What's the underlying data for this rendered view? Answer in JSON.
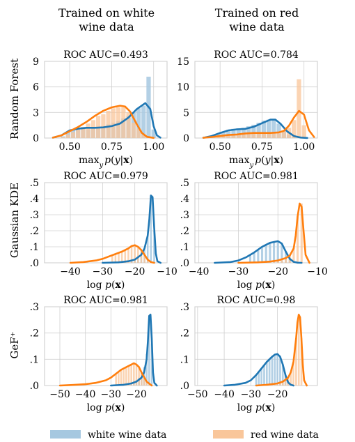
{
  "column_titles": [
    [
      "Trained on white",
      "wine data"
    ],
    [
      "Trained on red",
      "wine data"
    ]
  ],
  "row_titles": [
    "Random Forest",
    "Gaussian KDE",
    "GeF⁺"
  ],
  "legend": [
    {
      "label": "white wine data",
      "color": "#a6c8e0"
    },
    {
      "label": "red wine data",
      "color": "#f9c69a"
    }
  ],
  "colors": {
    "white": "#1f77b4",
    "red": "#ff7f0e",
    "white_bar": "#a6c8e0",
    "red_bar": "#f9c69a",
    "grid": "#d0d0d0"
  },
  "chart_data": [
    {
      "type": "area",
      "title": "ROC AUC=0.493",
      "xlabel": "max_y p(y|x)",
      "xlim": [
        0.35,
        1.08
      ],
      "ylim": [
        0,
        9
      ],
      "xticks": [
        0.5,
        0.75,
        1.0
      ],
      "xtick_labels": [
        "0.50",
        "0.75",
        "1.00"
      ],
      "yticks": [
        0,
        3,
        6,
        9
      ],
      "ytick_labels": [
        "0",
        "3",
        "6",
        "9"
      ],
      "series": [
        {
          "name": "white wine data",
          "x": [
            0.4,
            0.45,
            0.5,
            0.55,
            0.6,
            0.65,
            0.7,
            0.75,
            0.8,
            0.85,
            0.9,
            0.95,
            0.98,
            1.0,
            1.02,
            1.04
          ],
          "y": [
            0.05,
            0.3,
            0.9,
            1.1,
            1.2,
            1.2,
            1.25,
            1.4,
            1.7,
            2.4,
            3.4,
            4.1,
            3.4,
            1.4,
            0.3,
            0.05
          ]
        },
        {
          "name": "red wine data",
          "x": [
            0.4,
            0.45,
            0.5,
            0.55,
            0.6,
            0.65,
            0.7,
            0.75,
            0.8,
            0.83,
            0.86,
            0.9,
            0.93,
            0.96,
            1.0
          ],
          "y": [
            0.05,
            0.3,
            0.8,
            1.3,
            1.9,
            2.6,
            3.2,
            3.6,
            3.8,
            3.7,
            3.1,
            1.6,
            0.6,
            0.15,
            0.02
          ]
        }
      ],
      "bars": {
        "width": 0.026,
        "bins": [
          [
            0.46,
            0.2,
            0.1
          ],
          [
            0.49,
            0.7,
            0.4
          ],
          [
            0.52,
            0.9,
            0.7
          ],
          [
            0.55,
            1.0,
            1.0
          ],
          [
            0.58,
            1.1,
            1.3
          ],
          [
            0.61,
            1.0,
            1.7
          ],
          [
            0.64,
            1.1,
            2.1
          ],
          [
            0.67,
            1.2,
            2.6
          ],
          [
            0.7,
            1.3,
            2.8
          ],
          [
            0.73,
            1.6,
            3.2
          ],
          [
            0.76,
            1.8,
            3.5
          ],
          [
            0.79,
            2.0,
            3.6
          ],
          [
            0.82,
            2.3,
            3.6
          ],
          [
            0.85,
            2.6,
            3.0
          ],
          [
            0.88,
            3.0,
            1.8
          ],
          [
            0.91,
            3.5,
            1.1
          ],
          [
            0.94,
            3.8,
            0.4
          ],
          [
            0.97,
            7.2,
            0.1
          ],
          [
            1.0,
            1.0,
            0.0
          ]
        ]
      }
    },
    {
      "type": "area",
      "title": "ROC AUC=0.784",
      "xlabel": "max_y p(y|x)",
      "xlim": [
        0.35,
        1.08
      ],
      "ylim": [
        0,
        15
      ],
      "xticks": [
        0.5,
        0.75,
        1.0
      ],
      "xtick_labels": [
        "0.50",
        "0.75",
        "1.00"
      ],
      "yticks": [
        0,
        5,
        10,
        15
      ],
      "ytick_labels": [
        "0",
        "5",
        "10",
        "15"
      ],
      "series": [
        {
          "name": "white wine data",
          "x": [
            0.4,
            0.45,
            0.5,
            0.55,
            0.6,
            0.65,
            0.7,
            0.75,
            0.8,
            0.83,
            0.86,
            0.9,
            0.94,
            0.98,
            1.02
          ],
          "y": [
            0.05,
            0.4,
            1.0,
            1.5,
            1.7,
            1.8,
            2.2,
            2.9,
            3.6,
            3.6,
            2.8,
            1.3,
            0.4,
            0.1,
            0.02
          ]
        },
        {
          "name": "red wine data",
          "x": [
            0.4,
            0.45,
            0.5,
            0.55,
            0.6,
            0.65,
            0.7,
            0.75,
            0.8,
            0.85,
            0.88,
            0.91,
            0.94,
            0.97,
            1.0,
            1.03,
            1.06
          ],
          "y": [
            0.05,
            0.2,
            0.4,
            0.6,
            0.7,
            0.9,
            1.0,
            1.0,
            1.0,
            1.1,
            1.4,
            2.4,
            4.0,
            5.3,
            4.6,
            1.5,
            0.2
          ]
        }
      ],
      "bars": {
        "width": 0.026,
        "bins": [
          [
            0.46,
            0.4,
            0.2
          ],
          [
            0.49,
            0.8,
            0.3
          ],
          [
            0.52,
            1.2,
            0.4
          ],
          [
            0.55,
            1.6,
            0.5
          ],
          [
            0.58,
            1.8,
            0.6
          ],
          [
            0.61,
            1.9,
            0.7
          ],
          [
            0.64,
            2.0,
            0.8
          ],
          [
            0.67,
            2.3,
            0.9
          ],
          [
            0.7,
            2.6,
            1.0
          ],
          [
            0.73,
            3.0,
            1.0
          ],
          [
            0.76,
            3.4,
            1.0
          ],
          [
            0.79,
            3.6,
            1.0
          ],
          [
            0.82,
            3.5,
            1.0
          ],
          [
            0.85,
            2.8,
            1.1
          ],
          [
            0.88,
            1.5,
            1.5
          ],
          [
            0.91,
            0.6,
            2.0
          ],
          [
            0.94,
            0.2,
            3.5
          ],
          [
            0.97,
            0.0,
            11.5
          ],
          [
            1.0,
            0.0,
            2.5
          ]
        ]
      }
    },
    {
      "type": "area",
      "title": "ROC AUC=0.979",
      "xlabel": "log p(x)",
      "xlim": [
        -48,
        -10
      ],
      "ylim": [
        0,
        0.5
      ],
      "xticks": [
        -40,
        -30,
        -20,
        -10
      ],
      "xtick_labels": [
        "−40",
        "−30",
        "−20",
        "−10"
      ],
      "yticks": [
        0,
        0.1,
        0.2,
        0.3,
        0.4,
        0.5
      ],
      "ytick_labels": [
        ".0",
        ".1",
        ".2",
        ".3",
        ".4",
        ".5"
      ],
      "series": [
        {
          "name": "white wine data",
          "x": [
            -30,
            -25,
            -22,
            -20,
            -18,
            -17,
            -16,
            -15.5,
            -15,
            -14.5,
            -14,
            -13.5,
            -13,
            -12
          ],
          "y": [
            0.0,
            0.003,
            0.01,
            0.02,
            0.05,
            0.09,
            0.17,
            0.27,
            0.42,
            0.41,
            0.22,
            0.06,
            0.01,
            0.0
          ]
        },
        {
          "name": "red wine data",
          "x": [
            -40,
            -36,
            -32,
            -30,
            -28,
            -26,
            -24,
            -22,
            -21,
            -20,
            -19,
            -18,
            -17,
            -16,
            -15,
            -14
          ],
          "y": [
            0.0,
            0.005,
            0.015,
            0.025,
            0.04,
            0.055,
            0.07,
            0.09,
            0.105,
            0.11,
            0.1,
            0.08,
            0.05,
            0.02,
            0.005,
            0.0
          ]
        }
      ],
      "bars": {
        "width": 0.55,
        "bins": [
          [
            -27,
            0.003,
            0.05
          ],
          [
            -26,
            0.005,
            0.055
          ],
          [
            -25,
            0.006,
            0.06
          ],
          [
            -24,
            0.008,
            0.07
          ],
          [
            -23,
            0.01,
            0.08
          ],
          [
            -22,
            0.012,
            0.09
          ],
          [
            -21,
            0.015,
            0.1
          ],
          [
            -20,
            0.02,
            0.105
          ],
          [
            -19,
            0.035,
            0.095
          ],
          [
            -18,
            0.05,
            0.08
          ],
          [
            -17,
            0.09,
            0.05
          ],
          [
            -16,
            0.17,
            0.02
          ],
          [
            -15,
            0.42,
            0.005
          ],
          [
            -14,
            0.2,
            0.0
          ]
        ]
      }
    },
    {
      "type": "area",
      "title": "ROC AUC=0.981",
      "xlabel": "log p(x)",
      "xlim": [
        -41,
        -10
      ],
      "ylim": [
        0,
        0.5
      ],
      "xticks": [
        -40,
        -30,
        -20,
        -10
      ],
      "xtick_labels": [
        "−40",
        "−30",
        "−20",
        "−10"
      ],
      "yticks": [
        0,
        0.1,
        0.2,
        0.3,
        0.4,
        0.5
      ],
      "ytick_labels": [
        ".0",
        ".1",
        ".2",
        ".3",
        ".4",
        ".5"
      ],
      "series": [
        {
          "name": "white wine data",
          "x": [
            -36,
            -32,
            -30,
            -28,
            -26,
            -24,
            -22,
            -20,
            -19,
            -18,
            -17,
            -16,
            -15,
            -14
          ],
          "y": [
            0.0,
            0.005,
            0.015,
            0.035,
            0.065,
            0.1,
            0.125,
            0.135,
            0.12,
            0.07,
            0.025,
            0.006,
            0.001,
            0.0
          ]
        },
        {
          "name": "red wine data",
          "x": [
            -30,
            -25,
            -22,
            -20,
            -18,
            -17,
            -16,
            -15.5,
            -15,
            -14.5,
            -14,
            -13.5,
            -13,
            -12
          ],
          "y": [
            0.0,
            0.003,
            0.008,
            0.015,
            0.03,
            0.045,
            0.09,
            0.17,
            0.29,
            0.37,
            0.35,
            0.2,
            0.05,
            0.0
          ]
        }
      ],
      "bars": {
        "width": 0.55,
        "bins": [
          [
            -27,
            0.05,
            0.004
          ],
          [
            -26,
            0.065,
            0.005
          ],
          [
            -25,
            0.08,
            0.006
          ],
          [
            -24,
            0.1,
            0.007
          ],
          [
            -23,
            0.115,
            0.008
          ],
          [
            -22,
            0.125,
            0.01
          ],
          [
            -21,
            0.13,
            0.012
          ],
          [
            -20,
            0.135,
            0.015
          ],
          [
            -19,
            0.12,
            0.02
          ],
          [
            -18,
            0.07,
            0.03
          ],
          [
            -17,
            0.025,
            0.045
          ],
          [
            -16,
            0.006,
            0.09
          ],
          [
            -15,
            0.0,
            0.29
          ],
          [
            -14,
            0.0,
            0.37
          ]
        ]
      }
    },
    {
      "type": "area",
      "title": "ROC AUC=0.981",
      "xlabel": "log p(x)",
      "xlim": [
        -56,
        -8
      ],
      "ylim": [
        0,
        0.3
      ],
      "xticks": [
        -50,
        -40,
        -30,
        -20
      ],
      "xtick_labels": [
        "−50",
        "−40",
        "−30",
        "−20"
      ],
      "yticks": [
        0,
        0.1,
        0.2,
        0.3
      ],
      "ytick_labels": [
        ".0",
        ".1",
        ".2",
        ".3"
      ],
      "series": [
        {
          "name": "white wine data",
          "x": [
            -30,
            -25,
            -22,
            -20,
            -18,
            -17,
            -16,
            -15.5,
            -15,
            -14.5,
            -14,
            -13.5,
            -13,
            -12
          ],
          "y": [
            0.0,
            0.003,
            0.008,
            0.015,
            0.03,
            0.05,
            0.1,
            0.17,
            0.265,
            0.27,
            0.18,
            0.05,
            0.01,
            0.0
          ]
        },
        {
          "name": "red wine data",
          "x": [
            -50,
            -45,
            -40,
            -36,
            -32,
            -30,
            -28,
            -26,
            -24,
            -22,
            -21,
            -20,
            -19,
            -18,
            -16,
            -14
          ],
          "y": [
            0.0,
            0.002,
            0.005,
            0.01,
            0.02,
            0.03,
            0.045,
            0.06,
            0.07,
            0.08,
            0.085,
            0.08,
            0.07,
            0.05,
            0.015,
            0.0
          ]
        }
      ],
      "bars": {
        "width": 0.7,
        "bins": [
          [
            -28,
            0.003,
            0.045
          ],
          [
            -27,
            0.004,
            0.05
          ],
          [
            -26,
            0.005,
            0.06
          ],
          [
            -25,
            0.006,
            0.065
          ],
          [
            -24,
            0.008,
            0.07
          ],
          [
            -23,
            0.01,
            0.075
          ],
          [
            -22,
            0.012,
            0.08
          ],
          [
            -21,
            0.015,
            0.085
          ],
          [
            -20,
            0.02,
            0.08
          ],
          [
            -19,
            0.03,
            0.07
          ],
          [
            -18,
            0.05,
            0.05
          ],
          [
            -17,
            0.07,
            0.03
          ],
          [
            -16,
            0.12,
            0.015
          ],
          [
            -15,
            0.265,
            0.005
          ],
          [
            -14,
            0.16,
            0.0
          ]
        ]
      }
    },
    {
      "type": "area",
      "title": "ROC AUC=0.98",
      "xlabel": "log p(x)",
      "xlim": [
        -51,
        -5
      ],
      "ylim": [
        0,
        0.3
      ],
      "xticks": [
        -50,
        -40,
        -30,
        -20
      ],
      "xtick_labels": [
        "−50",
        "−40",
        "−30",
        "−20"
      ],
      "yticks": [
        0,
        0.1,
        0.2,
        0.3
      ],
      "ytick_labels": [
        ".0",
        ".1",
        ".2",
        ".3"
      ],
      "series": [
        {
          "name": "white wine data",
          "x": [
            -40,
            -36,
            -32,
            -30,
            -28,
            -26,
            -24,
            -22,
            -21,
            -20,
            -19,
            -18,
            -17,
            -16,
            -15,
            -14
          ],
          "y": [
            0.0,
            0.003,
            0.01,
            0.02,
            0.04,
            0.065,
            0.09,
            0.11,
            0.118,
            0.12,
            0.11,
            0.08,
            0.04,
            0.012,
            0.003,
            0.0
          ]
        },
        {
          "name": "red wine data",
          "x": [
            -28,
            -24,
            -20,
            -18,
            -16,
            -15,
            -14,
            -13,
            -12.5,
            -12,
            -11.5,
            -11,
            -10.5,
            -10,
            -9
          ],
          "y": [
            0.0,
            0.003,
            0.008,
            0.015,
            0.03,
            0.05,
            0.09,
            0.18,
            0.24,
            0.27,
            0.26,
            0.18,
            0.08,
            0.02,
            0.0
          ]
        }
      ],
      "bars": {
        "width": 0.7,
        "bins": [
          [
            -28,
            0.04,
            0.0
          ],
          [
            -27,
            0.05,
            0.001
          ],
          [
            -26,
            0.065,
            0.002
          ],
          [
            -25,
            0.075,
            0.003
          ],
          [
            -24,
            0.09,
            0.004
          ],
          [
            -23,
            0.1,
            0.005
          ],
          [
            -22,
            0.11,
            0.006
          ],
          [
            -21,
            0.118,
            0.007
          ],
          [
            -20,
            0.12,
            0.008
          ],
          [
            -19,
            0.11,
            0.01
          ],
          [
            -18,
            0.08,
            0.015
          ],
          [
            -17,
            0.04,
            0.02
          ],
          [
            -16,
            0.012,
            0.03
          ],
          [
            -15,
            0.003,
            0.05
          ],
          [
            -14,
            0.0,
            0.09
          ],
          [
            -13,
            0.0,
            0.18
          ],
          [
            -12,
            0.0,
            0.27
          ],
          [
            -11,
            0.0,
            0.18
          ]
        ]
      }
    }
  ]
}
